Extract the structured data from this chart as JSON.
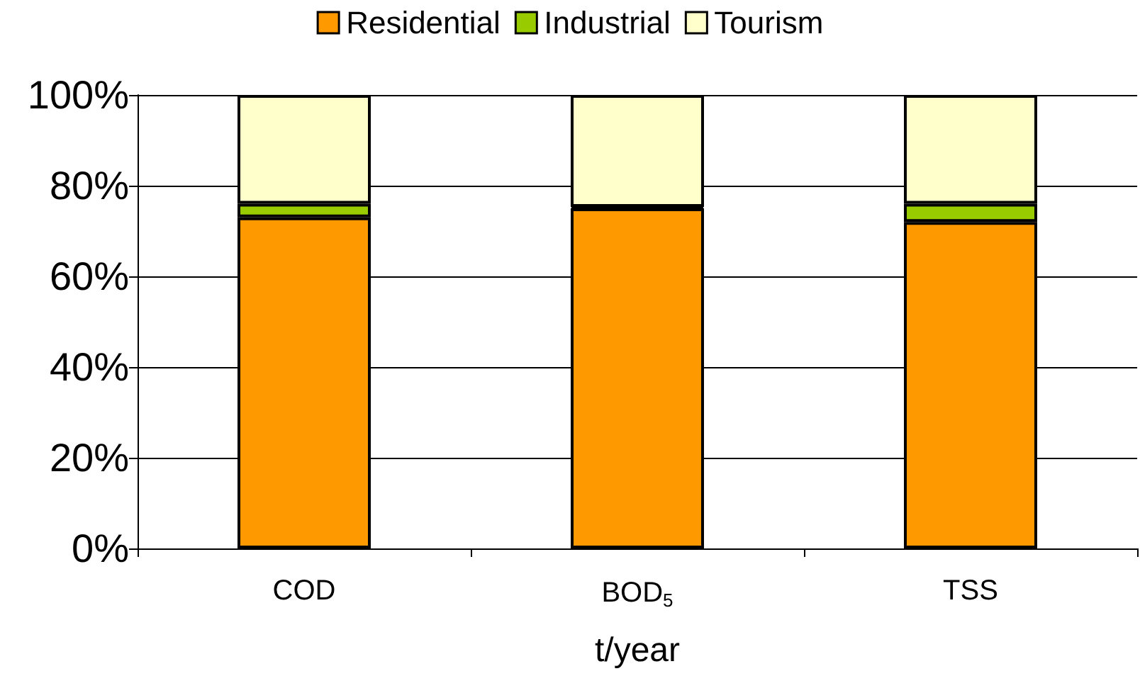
{
  "chart_data": {
    "type": "bar",
    "stacked": true,
    "categories": [
      "COD",
      "BOD$_{5}$",
      "TSS"
    ],
    "xlabel": "t/year",
    "series": [
      {
        "name": "Residential",
        "color": "#ff9900",
        "values": [
          73,
          75,
          72
        ]
      },
      {
        "name": "Industrial",
        "color": "#99cc00",
        "values": [
          3,
          0.3,
          4
        ]
      },
      {
        "name": "Tourism",
        "color": "#ffffcc",
        "values": [
          24,
          24.7,
          24
        ]
      }
    ],
    "ylim": [
      0,
      100
    ],
    "yticks": [
      {
        "value": 0,
        "label": "0%"
      },
      {
        "value": 20,
        "label": "20%"
      },
      {
        "value": 40,
        "label": "40%"
      },
      {
        "value": 60,
        "label": "60%"
      },
      {
        "value": 80,
        "label": "80%"
      },
      {
        "value": 100,
        "label": "100%"
      }
    ],
    "grid": "y",
    "legend": "top"
  }
}
